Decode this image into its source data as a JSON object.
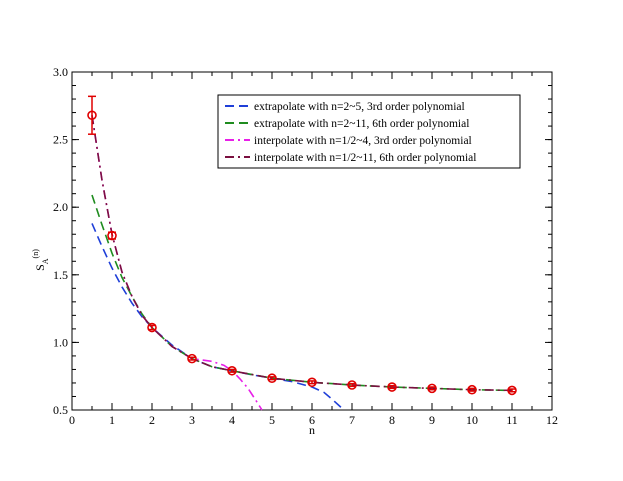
{
  "chart_data": {
    "type": "line",
    "title": "",
    "xlabel": "n",
    "ylabel_main": "S",
    "ylabel_sub": "A",
    "ylabel_sup": "(n)",
    "xlim": [
      0,
      12
    ],
    "ylim": [
      0.5,
      3.0
    ],
    "xticks": [
      0,
      1,
      2,
      3,
      4,
      5,
      6,
      7,
      8,
      9,
      10,
      11,
      12
    ],
    "yticks": [
      0.5,
      1.0,
      1.5,
      2.0,
      2.5,
      3.0
    ],
    "xtick_labels": [
      "0",
      "1",
      "2",
      "3",
      "4",
      "5",
      "6",
      "7",
      "8",
      "9",
      "10",
      "11",
      "12"
    ],
    "ytick_labels": [
      "0.5",
      "1.0",
      "1.5",
      "2.0",
      "2.5",
      "3.0"
    ],
    "legend_position": "top-right",
    "series": [
      {
        "name": "extrapolate with n=2~5, 3rd order polynomial",
        "color": "#1f3fd8",
        "dash": "dashed",
        "x": [
          0.5,
          0.75,
          1.0,
          1.25,
          1.5,
          1.75,
          2.0,
          2.5,
          3.0,
          3.5,
          4.0,
          4.5,
          5.0,
          5.5,
          6.0,
          6.3,
          6.5,
          6.8
        ],
        "y": [
          1.88,
          1.71,
          1.55,
          1.41,
          1.29,
          1.19,
          1.11,
          0.98,
          0.88,
          0.82,
          0.79,
          0.76,
          0.735,
          0.71,
          0.67,
          0.63,
          0.58,
          0.5
        ]
      },
      {
        "name": "extrapolate with n=2~11, 6th order polynomial",
        "color": "#1f8c1f",
        "dash": "dashed",
        "x": [
          0.5,
          0.75,
          1.0,
          1.25,
          1.5,
          1.75,
          2.0,
          2.5,
          3.0,
          3.5,
          4.0,
          5.0,
          6.0,
          7.0,
          8.0,
          9.0,
          10.0,
          11.0
        ],
        "y": [
          2.09,
          1.87,
          1.66,
          1.48,
          1.34,
          1.21,
          1.11,
          0.97,
          0.88,
          0.82,
          0.79,
          0.735,
          0.705,
          0.685,
          0.67,
          0.66,
          0.65,
          0.645
        ]
      },
      {
        "name": "interpolate with n=1/2~4, 3rd order polynomial",
        "color": "#e81fe8",
        "dash": "dashdot",
        "x": [
          0.5,
          0.75,
          1.0,
          1.25,
          1.5,
          1.75,
          2.0,
          2.5,
          3.0,
          3.5,
          3.8,
          4.0,
          4.2,
          4.4,
          4.6,
          4.75
        ],
        "y": [
          2.68,
          2.2,
          1.8,
          1.52,
          1.34,
          1.2,
          1.11,
          0.97,
          0.88,
          0.86,
          0.83,
          0.79,
          0.73,
          0.66,
          0.57,
          0.5
        ]
      },
      {
        "name": "interpolate with n=1/2~11, 6th order polynomial",
        "color": "#7a1040",
        "dash": "dashdot",
        "x": [
          0.5,
          0.75,
          1.0,
          1.25,
          1.5,
          1.75,
          2.0,
          2.5,
          3.0,
          3.5,
          4.0,
          5.0,
          6.0,
          7.0,
          8.0,
          9.0,
          10.0,
          11.0
        ],
        "y": [
          2.68,
          2.2,
          1.8,
          1.52,
          1.34,
          1.2,
          1.11,
          0.97,
          0.88,
          0.82,
          0.79,
          0.735,
          0.705,
          0.685,
          0.67,
          0.66,
          0.65,
          0.645
        ]
      }
    ],
    "data_points": {
      "name": "data",
      "color": "#e00000",
      "x": [
        0.5,
        1.0,
        2.0,
        3.0,
        4.0,
        5.0,
        6.0,
        7.0,
        8.0,
        9.0,
        10.0,
        11.0
      ],
      "y": [
        2.68,
        1.79,
        1.11,
        0.88,
        0.79,
        0.735,
        0.705,
        0.685,
        0.67,
        0.66,
        0.65,
        0.645
      ],
      "err": [
        0.14,
        0.025,
        0.015,
        0.01,
        0.01,
        0.01,
        0.01,
        0.01,
        0.01,
        0.01,
        0.01,
        0.01
      ]
    }
  }
}
